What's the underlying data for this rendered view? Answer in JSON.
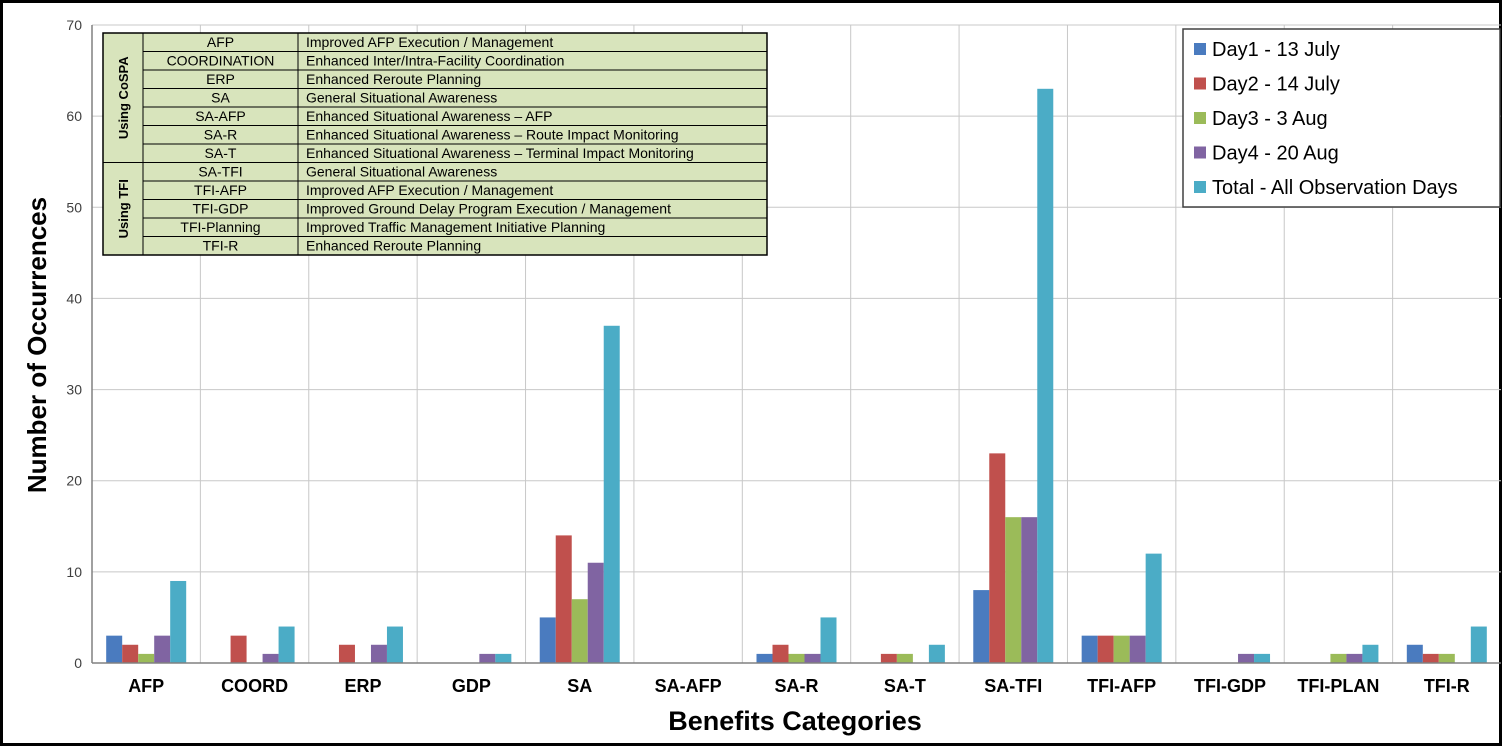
{
  "chart_data": {
    "type": "bar",
    "title": "",
    "xlabel": "Benefits Categories",
    "ylabel": "Number of Occurrences",
    "ylim": [
      0,
      70
    ],
    "yticks": [
      0,
      10,
      20,
      30,
      40,
      50,
      60,
      70
    ],
    "grid": true,
    "legend_position": "top-right",
    "categories": [
      "AFP",
      "COORD",
      "ERP",
      "GDP",
      "SA",
      "SA-AFP",
      "SA-R",
      "SA-T",
      "SA-TFI",
      "TFI-AFP",
      "TFI-GDP",
      "TFI-PLAN",
      "TFI-R"
    ],
    "series": [
      {
        "name": "Day1 - 13 July",
        "color": "#4a7bbf",
        "values": [
          3,
          0,
          0,
          0,
          5,
          0,
          1,
          0,
          8,
          3,
          0,
          0,
          2
        ]
      },
      {
        "name": "Day2 - 14 July",
        "color": "#c0504d",
        "values": [
          2,
          3,
          2,
          0,
          14,
          0,
          2,
          1,
          23,
          3,
          0,
          0,
          1
        ]
      },
      {
        "name": "Day3 - 3 Aug",
        "color": "#9bbb59",
        "values": [
          1,
          0,
          0,
          0,
          7,
          0,
          1,
          1,
          16,
          3,
          0,
          1,
          1
        ]
      },
      {
        "name": "Day4 - 20 Aug",
        "color": "#8064a2",
        "values": [
          3,
          1,
          2,
          1,
          11,
          0,
          1,
          0,
          16,
          3,
          1,
          1,
          0
        ]
      },
      {
        "name": "Total - All Observation Days",
        "color": "#4bacc6",
        "values": [
          9,
          4,
          4,
          1,
          37,
          0,
          5,
          2,
          63,
          12,
          1,
          2,
          4
        ]
      }
    ]
  },
  "definitions": {
    "fill_color": "#d8e4bc",
    "groups": [
      {
        "label": "Using CoSPA",
        "rows": [
          {
            "code": "AFP",
            "desc": "Improved AFP Execution / Management"
          },
          {
            "code": "COORDINATION",
            "desc": "Enhanced Inter/Intra-Facility Coordination"
          },
          {
            "code": "ERP",
            "desc": "Enhanced Reroute Planning"
          },
          {
            "code": "SA",
            "desc": "General Situational Awareness"
          },
          {
            "code": "SA-AFP",
            "desc": "Enhanced Situational Awareness – AFP"
          },
          {
            "code": "SA-R",
            "desc": "Enhanced Situational Awareness – Route Impact Monitoring"
          },
          {
            "code": "SA-T",
            "desc": "Enhanced Situational Awareness – Terminal Impact Monitoring"
          }
        ]
      },
      {
        "label": "Using TFI",
        "rows": [
          {
            "code": "SA-TFI",
            "desc": "General Situational Awareness"
          },
          {
            "code": "TFI-AFP",
            "desc": "Improved AFP Execution / Management"
          },
          {
            "code": "TFI-GDP",
            "desc": "Improved Ground Delay Program Execution / Management"
          },
          {
            "code": "TFI-Planning",
            "desc": "Improved Traffic Management Initiative Planning"
          },
          {
            "code": "TFI-R",
            "desc": "Enhanced Reroute Planning"
          }
        ]
      }
    ]
  }
}
